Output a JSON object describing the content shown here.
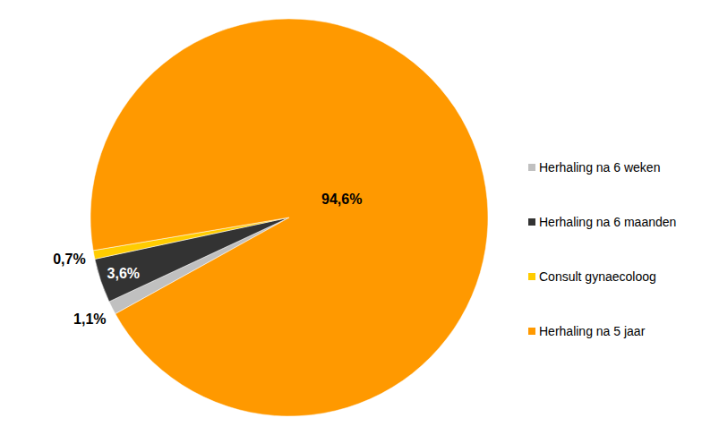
{
  "chart_data": {
    "type": "pie",
    "categories": [
      "Herhaling na 6 weken",
      "Herhaling na 6 maanden",
      "Consult gynaecoloog",
      "Herhaling na 5 jaar"
    ],
    "values": [
      1.1,
      3.6,
      0.7,
      94.6
    ],
    "value_labels": [
      "1,1%",
      "3,6%",
      "0,7%",
      "94,6%"
    ],
    "colors": [
      "#c0c0c0",
      "#333333",
      "#ffcc00",
      "#ff9900"
    ],
    "data_labels": true,
    "legend": "right"
  }
}
